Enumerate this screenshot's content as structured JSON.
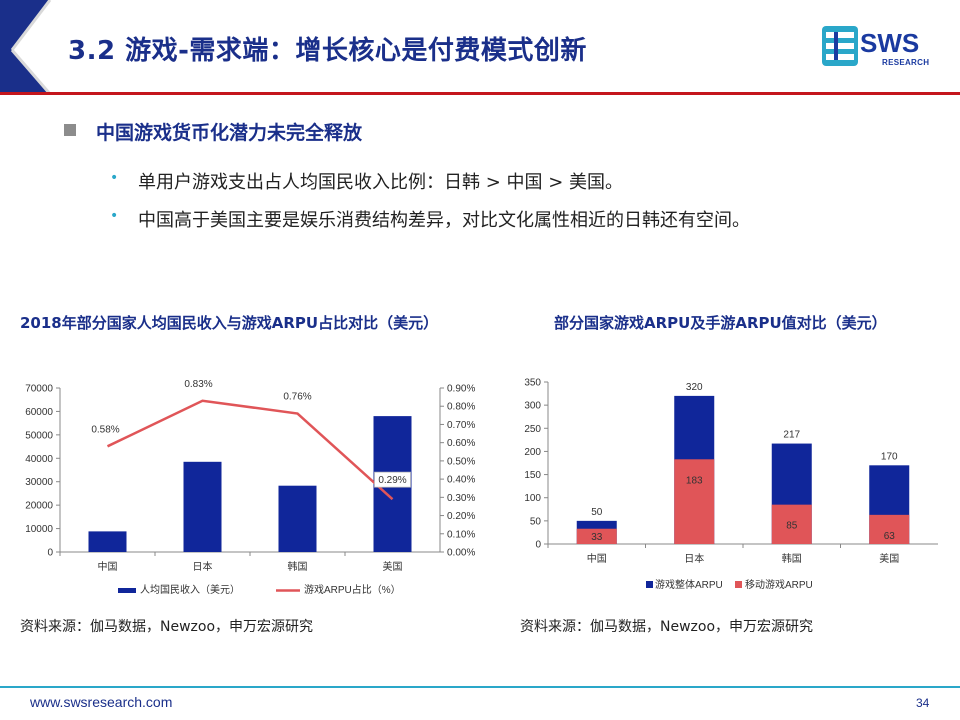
{
  "slide": {
    "title": "3.2 游戏-需求端：增长核心是付费模式创新",
    "logo": {
      "text": "SWS",
      "sub": "RESEARCH"
    },
    "heading": "中国游戏货币化潜力未完全释放",
    "bullets": [
      "单用户游戏支出占人均国民收入比例：日韩 > 中国 > 美国。",
      "中国高于美国主要是娱乐消费结构差异，对比文化属性相近的日韩还有空间。"
    ],
    "footer_url": "www.swsresearch.com",
    "page_number": "34"
  },
  "colors": {
    "navy": "#1a2f8a",
    "red_line": "#c4161c",
    "bar_blue": "#10269a",
    "line_red": "#e05558",
    "bar_red": "#e05558",
    "accent_cyan": "#2aa7c9"
  },
  "chart_data": [
    {
      "type": "bar",
      "title": "2018年部分国家人均国民收入与游戏ARPU占比对比（美元）",
      "categories": [
        "中国",
        "日本",
        "韩国",
        "美国"
      ],
      "series": [
        {
          "name": "人均国民收入（美元）",
          "type": "bar",
          "axis": "left",
          "values": [
            8800,
            38500,
            28300,
            58000
          ]
        },
        {
          "name": "游戏ARPU占比（%）",
          "type": "line",
          "axis": "right",
          "values": [
            0.58,
            0.83,
            0.76,
            0.29
          ],
          "labels": [
            "0.58%",
            "0.83%",
            "0.76%",
            "0.29%"
          ]
        }
      ],
      "ylim_left": [
        0,
        70000
      ],
      "yticks_left": [
        "0",
        "10000",
        "20000",
        "30000",
        "40000",
        "50000",
        "60000",
        "70000"
      ],
      "ylim_right": [
        0,
        0.9
      ],
      "yticks_right": [
        "0.00%",
        "0.10%",
        "0.20%",
        "0.30%",
        "0.40%",
        "0.50%",
        "0.60%",
        "0.70%",
        "0.80%",
        "0.90%"
      ],
      "legend_position": "bottom",
      "grid": false,
      "source": "资料来源：伽马数据，Newzoo，申万宏源研究"
    },
    {
      "type": "bar",
      "title": "部分国家游戏ARPU及手游ARPU值对比（美元）",
      "categories": [
        "中国",
        "日本",
        "韩国",
        "美国"
      ],
      "series": [
        {
          "name": "游戏整体ARPU",
          "values": [
            50,
            320,
            217,
            170
          ]
        },
        {
          "name": "移动游戏ARPU",
          "values": [
            33,
            183,
            85,
            63
          ]
        }
      ],
      "ylim": [
        0,
        350
      ],
      "yticks": [
        "0",
        "50",
        "100",
        "150",
        "200",
        "250",
        "300",
        "350"
      ],
      "legend_position": "bottom",
      "grid": false,
      "source": "资料来源：伽马数据，Newzoo，申万宏源研究"
    }
  ]
}
